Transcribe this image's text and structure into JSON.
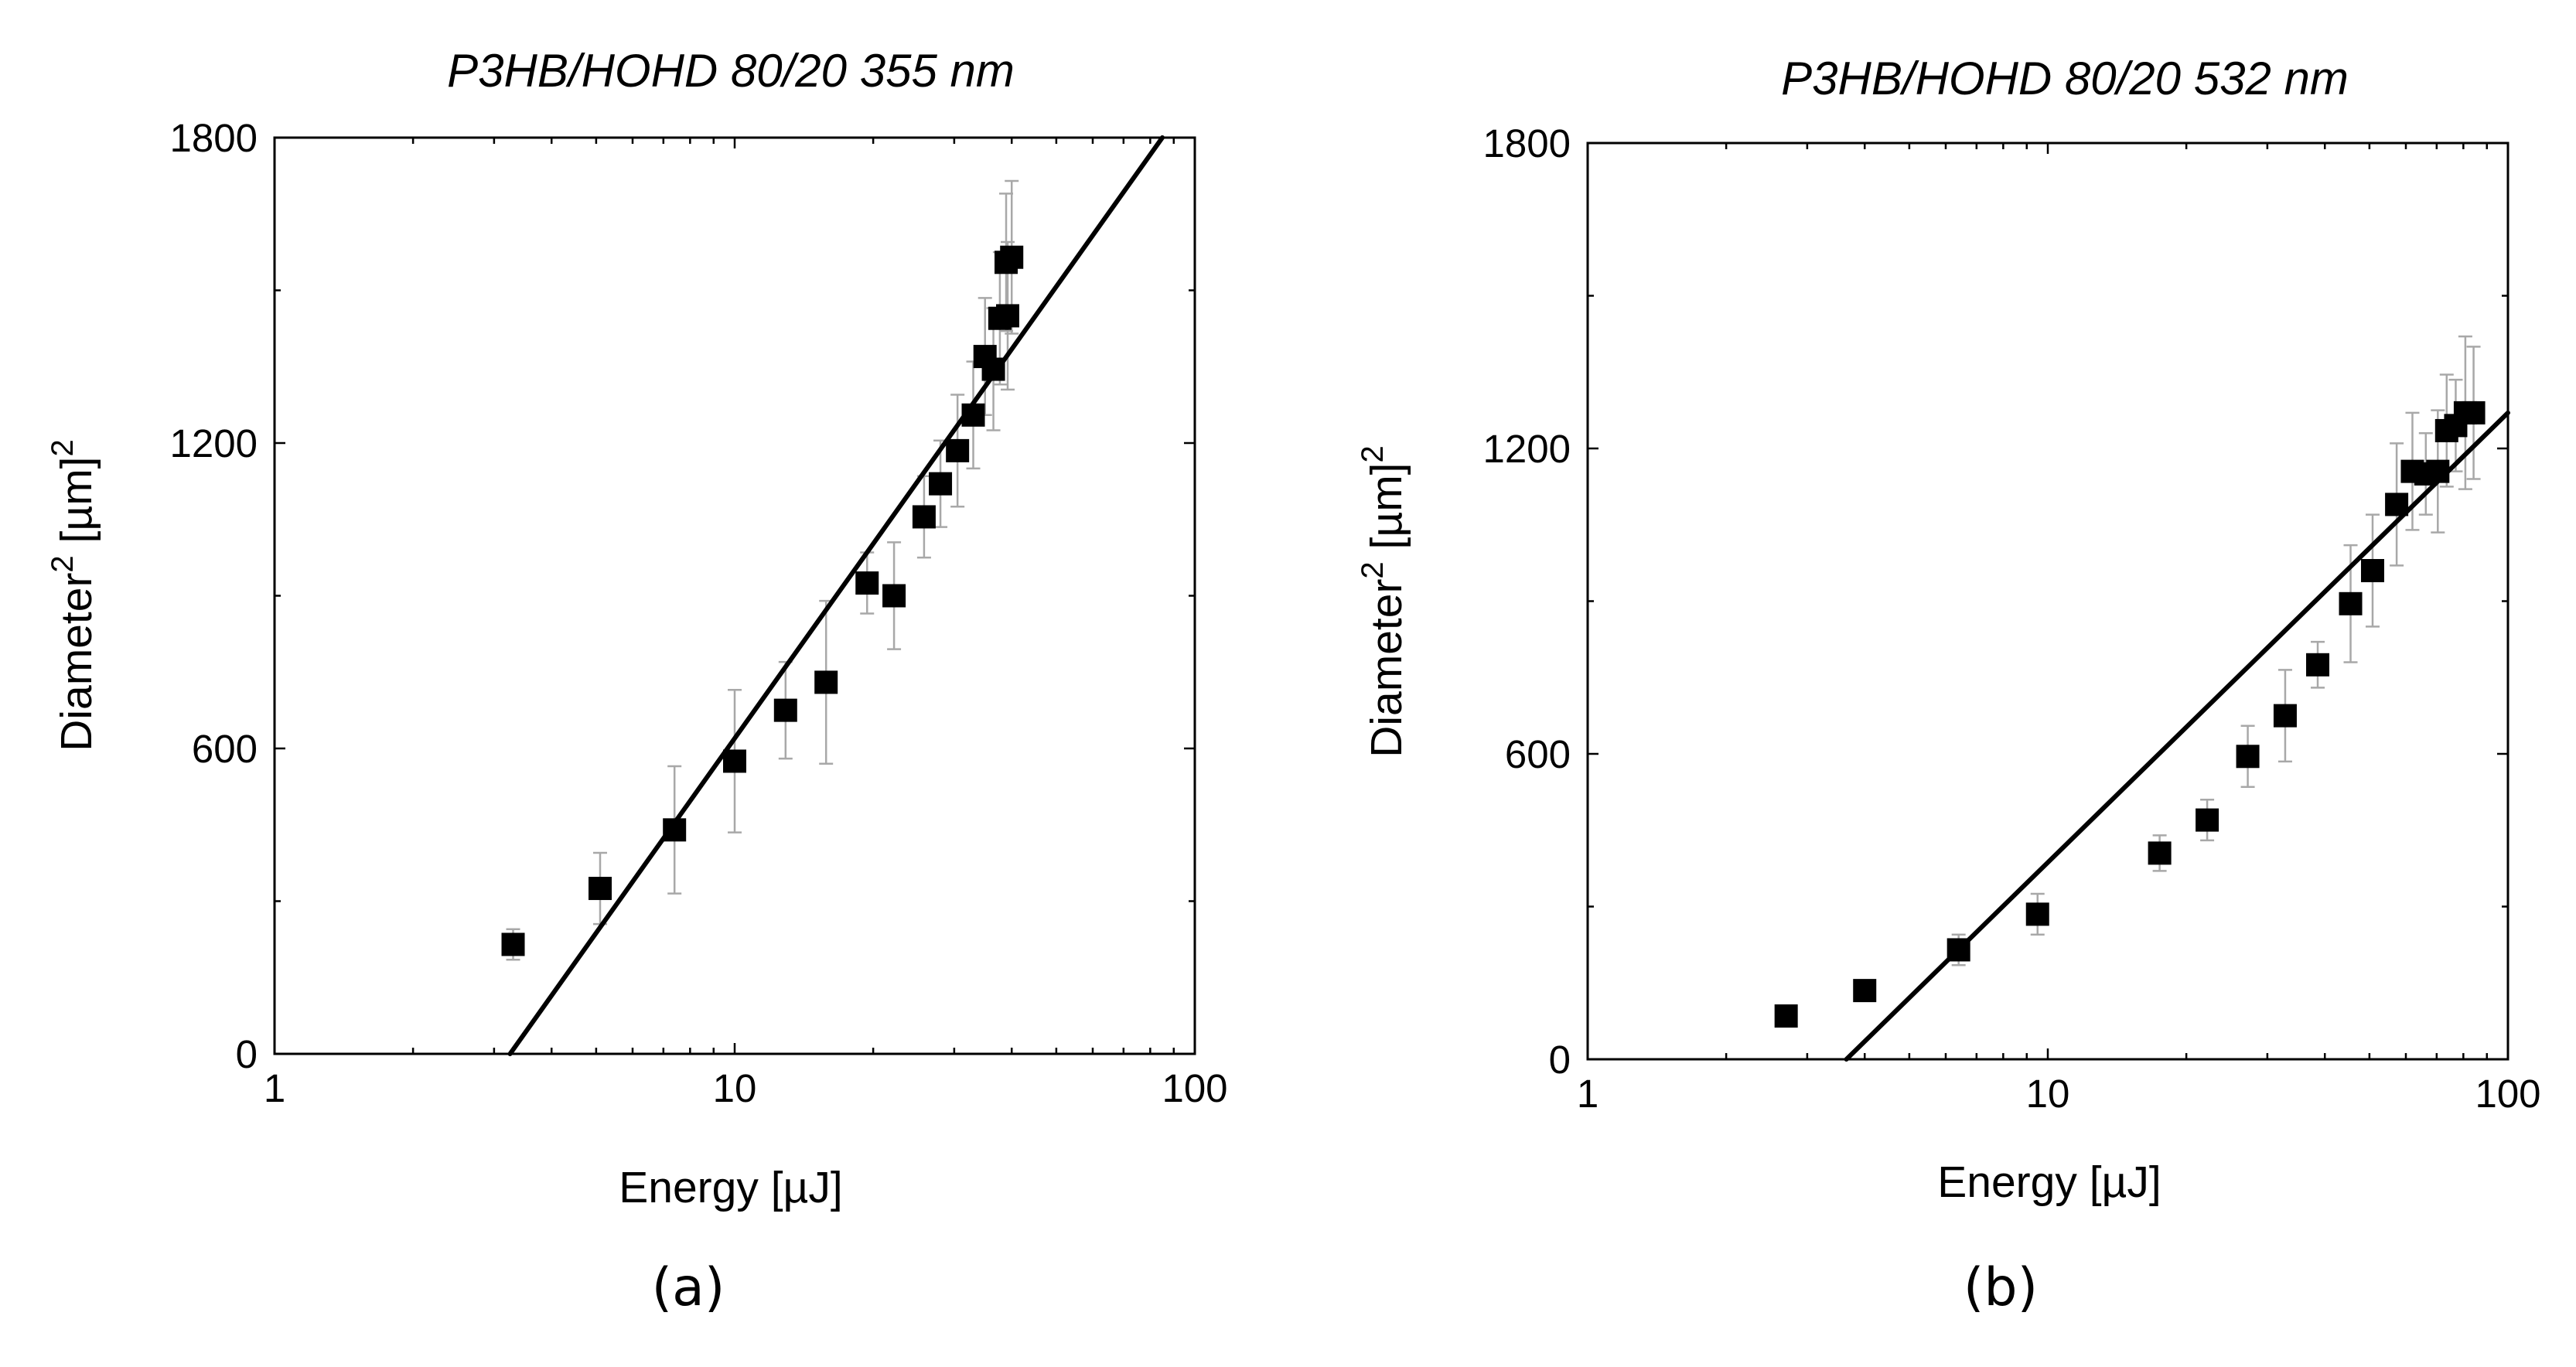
{
  "panels": [
    {
      "label": "(a)"
    },
    {
      "label": "(b)"
    }
  ],
  "chart_data": [
    {
      "type": "scatter",
      "title": "P3HB/HOHD 80/20 355 nm",
      "xlabel": "Energy [µJ]",
      "ylabel": {
        "prefix": "Diameter",
        "sup1": "2",
        "mid": " [µm]",
        "sup2": "2"
      },
      "xscale": "log",
      "xlim": [
        1,
        100
      ],
      "ylim": [
        0,
        1800
      ],
      "xticks": [
        1,
        10,
        100
      ],
      "xtick_labels": [
        "1",
        "10",
        "100"
      ],
      "yticks": [
        0,
        600,
        1200,
        1800
      ],
      "ytick_labels": [
        "0",
        "600",
        "1200",
        "1800"
      ],
      "series": [
        {
          "name": "data",
          "x": [
            3.3,
            5.1,
            7.4,
            10.0,
            12.9,
            15.8,
            19.4,
            22.2,
            25.8,
            28.0,
            30.5,
            33.0,
            35.0,
            36.5,
            37.7,
            38.9,
            39.2,
            40.0
          ],
          "y": [
            215,
            325,
            440,
            575,
            675,
            730,
            925,
            900,
            1055,
            1120,
            1185,
            1255,
            1370,
            1345,
            1445,
            1555,
            1450,
            1565
          ],
          "err": [
            30,
            70,
            125,
            140,
            95,
            160,
            60,
            105,
            80,
            85,
            110,
            105,
            115,
            120,
            130,
            135,
            145,
            150
          ]
        }
      ],
      "fit": {
        "type": "log-linear",
        "x": [
          3.25,
          85
        ],
        "y": [
          0,
          1800
        ]
      }
    },
    {
      "type": "scatter",
      "title": "P3HB/HOHD 80/20 532 nm",
      "xlabel": "Energy [µJ]",
      "ylabel": {
        "prefix": "Diameter",
        "sup1": "2",
        "mid": " [µm]",
        "sup2": "2"
      },
      "xscale": "log",
      "xlim": [
        1,
        100
      ],
      "ylim": [
        0,
        1800
      ],
      "xticks": [
        1,
        10,
        100
      ],
      "xtick_labels": [
        "1",
        "10",
        "100"
      ],
      "yticks": [
        0,
        600,
        1200,
        1800
      ],
      "ytick_labels": [
        "0",
        "600",
        "1200",
        "1800"
      ],
      "series": [
        {
          "name": "data",
          "x": [
            2.7,
            4.0,
            6.4,
            9.5,
            17.5,
            22.2,
            27.2,
            32.8,
            38.6,
            45.5,
            50.8,
            57.3,
            62.0,
            66.3,
            70.4,
            73.6,
            77.0,
            80.8,
            84.2
          ],
          "y": [
            85,
            135,
            215,
            285,
            405,
            470,
            595,
            675,
            775,
            895,
            960,
            1090,
            1155,
            1150,
            1155,
            1235,
            1245,
            1270,
            1270
          ],
          "err": [
            15,
            20,
            30,
            40,
            35,
            40,
            60,
            90,
            45,
            115,
            110,
            120,
            115,
            80,
            120,
            110,
            90,
            150,
            130
          ]
        }
      ],
      "fit": {
        "type": "log-linear",
        "x": [
          3.65,
          100
        ],
        "y": [
          0,
          1270
        ]
      }
    }
  ]
}
